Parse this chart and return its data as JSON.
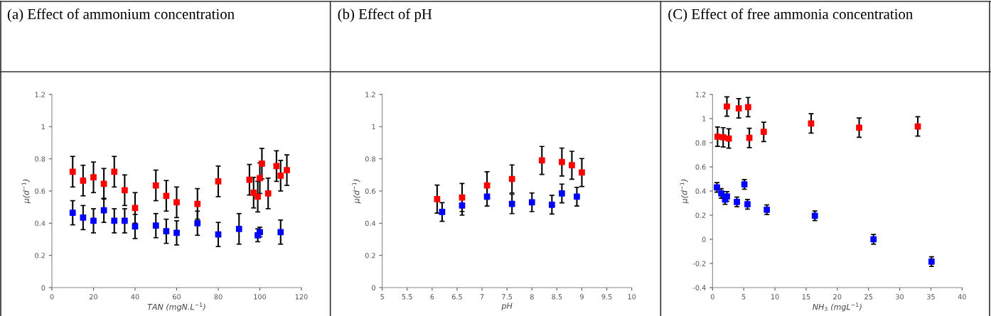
{
  "chart_data": [
    {
      "type": "scatter",
      "title": "(a) Effect of ammonium concentration",
      "xlabel": "TAN (mgN.L$^{−1}$)",
      "ylabel": "μ(d$^{−1}$)",
      "xlim": [
        0,
        120
      ],
      "ylim": [
        0,
        1.2
      ],
      "xticks": [
        0,
        20,
        40,
        60,
        80,
        100,
        120
      ],
      "yticks": [
        0,
        0.2,
        0.4,
        0.6,
        0.8,
        1,
        1.2
      ],
      "marker": "square",
      "grid": false,
      "legend": false,
      "series": [
        {
          "color": "#ff0000",
          "x": [
            10,
            15,
            20,
            25,
            30,
            35,
            40,
            50,
            55,
            60,
            70,
            80,
            95,
            97,
            99,
            100,
            101,
            104,
            108,
            110,
            113
          ],
          "values": [
            0.72,
            0.665,
            0.685,
            0.645,
            0.72,
            0.605,
            0.495,
            0.635,
            0.57,
            0.53,
            0.52,
            0.66,
            0.67,
            0.59,
            0.565,
            0.68,
            0.77,
            0.585,
            0.755,
            0.695,
            0.73
          ],
          "errors": [
            0.095,
            0.095,
            0.095,
            0.095,
            0.095,
            0.095,
            0.095,
            0.095,
            0.095,
            0.095,
            0.095,
            0.095,
            0.095,
            0.095,
            0.095,
            0.095,
            0.095,
            0.095,
            0.095,
            0.095,
            0.095
          ]
        },
        {
          "color": "#0000ff",
          "x": [
            10,
            15,
            20,
            25,
            30,
            35,
            40,
            50,
            55,
            60,
            70,
            80,
            90,
            99,
            100,
            110
          ],
          "values": [
            0.465,
            0.435,
            0.415,
            0.48,
            0.415,
            0.415,
            0.38,
            0.385,
            0.35,
            0.34,
            0.4,
            0.33,
            0.365,
            0.325,
            0.345,
            0.345
          ],
          "errors": [
            0.075,
            0.075,
            0.075,
            0.075,
            0.075,
            0.075,
            0.075,
            0.075,
            0.075,
            0.075,
            0.075,
            0.075,
            0.095,
            0.04,
            0.03,
            0.075
          ]
        }
      ]
    },
    {
      "type": "scatter",
      "title": "(b) Effect of pH",
      "xlabel": "pH",
      "ylabel": "μ(d$^{−1}$)",
      "xlim": [
        5,
        10
      ],
      "ylim": [
        0,
        1.2
      ],
      "xticks": [
        5,
        5.5,
        6,
        6.5,
        7,
        7.5,
        8,
        8.5,
        9,
        9.5,
        10
      ],
      "yticks": [
        0,
        0.2,
        0.4,
        0.6,
        0.8,
        1,
        1.2
      ],
      "marker": "square",
      "grid": false,
      "legend": false,
      "series": [
        {
          "color": "#ff0000",
          "x": [
            6.1,
            6.6,
            7.1,
            7.6,
            8.2,
            8.6,
            8.8,
            9.0
          ],
          "values": [
            0.55,
            0.56,
            0.635,
            0.675,
            0.79,
            0.78,
            0.76,
            0.715
          ],
          "errors": [
            0.087,
            0.087,
            0.085,
            0.087,
            0.087,
            0.087,
            0.087,
            0.087
          ]
        },
        {
          "color": "#0000ff",
          "x": [
            6.2,
            6.6,
            7.1,
            7.6,
            8.0,
            8.4,
            8.6,
            8.9
          ],
          "values": [
            0.47,
            0.51,
            0.565,
            0.52,
            0.53,
            0.515,
            0.585,
            0.565
          ],
          "errors": [
            0.058,
            0.06,
            0.058,
            0.06,
            0.058,
            0.058,
            0.058,
            0.058
          ]
        }
      ]
    },
    {
      "type": "scatter",
      "title": "(C) Effect of free ammonia concentration",
      "xlabel": "NH$_{3}$ (mgL$^{−1}$)",
      "ylabel": "μ(d$^{−1}$)",
      "xlim": [
        0,
        40
      ],
      "ylim": [
        -0.4,
        1.2
      ],
      "xticks": [
        0,
        5,
        10,
        15,
        20,
        25,
        30,
        35,
        40
      ],
      "yticks": [
        -0.4,
        -0.2,
        0,
        0.2,
        0.4,
        0.6,
        0.8,
        1,
        1.2
      ],
      "marker": "square",
      "grid": false,
      "legend": false,
      "series": [
        {
          "color": "#ff0000",
          "x": [
            0.8,
            1.7,
            2.3,
            2.6,
            4.2,
            5.7,
            5.9,
            8.2,
            15.8,
            23.5,
            32.9
          ],
          "values": [
            0.85,
            0.845,
            1.1,
            0.835,
            1.085,
            1.095,
            0.84,
            0.89,
            0.96,
            0.925,
            0.935
          ],
          "errors": [
            0.08,
            0.08,
            0.08,
            0.08,
            0.08,
            0.08,
            0.08,
            0.08,
            0.08,
            0.08,
            0.08
          ]
        },
        {
          "color": "#0000ff",
          "x": [
            0.7,
            1.4,
            2.0,
            2.3,
            3.9,
            5.1,
            5.6,
            8.7,
            16.4,
            25.8,
            35.1
          ],
          "values": [
            0.43,
            0.38,
            0.33,
            0.355,
            0.31,
            0.455,
            0.29,
            0.245,
            0.195,
            0.0,
            -0.185
          ],
          "errors": [
            0.04,
            0.04,
            0.04,
            0.04,
            0.04,
            0.04,
            0.04,
            0.04,
            0.04,
            0.04,
            0.04
          ]
        }
      ]
    }
  ]
}
